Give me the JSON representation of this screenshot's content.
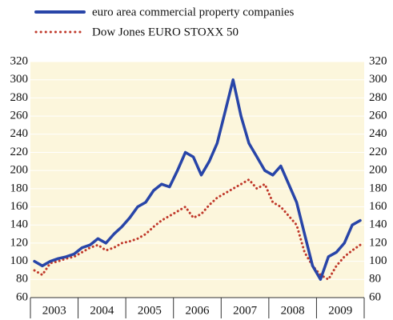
{
  "chart_data": {
    "type": "line",
    "categories": [
      null,
      null,
      "2003",
      null,
      null,
      null,
      null,
      null,
      "2004",
      null,
      null,
      null,
      null,
      null,
      "2005",
      null,
      null,
      null,
      null,
      null,
      "2006",
      null,
      null,
      null,
      null,
      null,
      "2007",
      null,
      null,
      null,
      null,
      null,
      "2008",
      null,
      null,
      null,
      null,
      null,
      "2009",
      null,
      null,
      null
    ],
    "series": [
      {
        "name": "euro area commercial property companies",
        "color": "#2845a8",
        "style": "solid",
        "values": [
          100,
          95,
          100,
          103,
          105,
          108,
          115,
          118,
          125,
          120,
          130,
          138,
          148,
          160,
          165,
          178,
          185,
          182,
          200,
          220,
          215,
          195,
          210,
          230,
          265,
          300,
          260,
          230,
          215,
          200,
          195,
          205,
          185,
          165,
          130,
          95,
          80,
          105,
          110,
          120,
          140,
          145
        ]
      },
      {
        "name": "Dow Jones EURO STOXX 50",
        "color": "#c0392b",
        "style": "dotted",
        "values": [
          90,
          85,
          98,
          100,
          103,
          105,
          110,
          115,
          118,
          112,
          115,
          120,
          122,
          125,
          130,
          138,
          145,
          150,
          155,
          160,
          148,
          152,
          162,
          170,
          175,
          180,
          185,
          190,
          180,
          185,
          165,
          160,
          150,
          140,
          110,
          95,
          85,
          80,
          95,
          105,
          112,
          118
        ]
      }
    ],
    "ylim": [
      60,
      320
    ],
    "yticks": [
      60,
      80,
      100,
      120,
      140,
      160,
      180,
      200,
      220,
      240,
      260,
      280,
      300,
      320
    ],
    "grid": true
  }
}
